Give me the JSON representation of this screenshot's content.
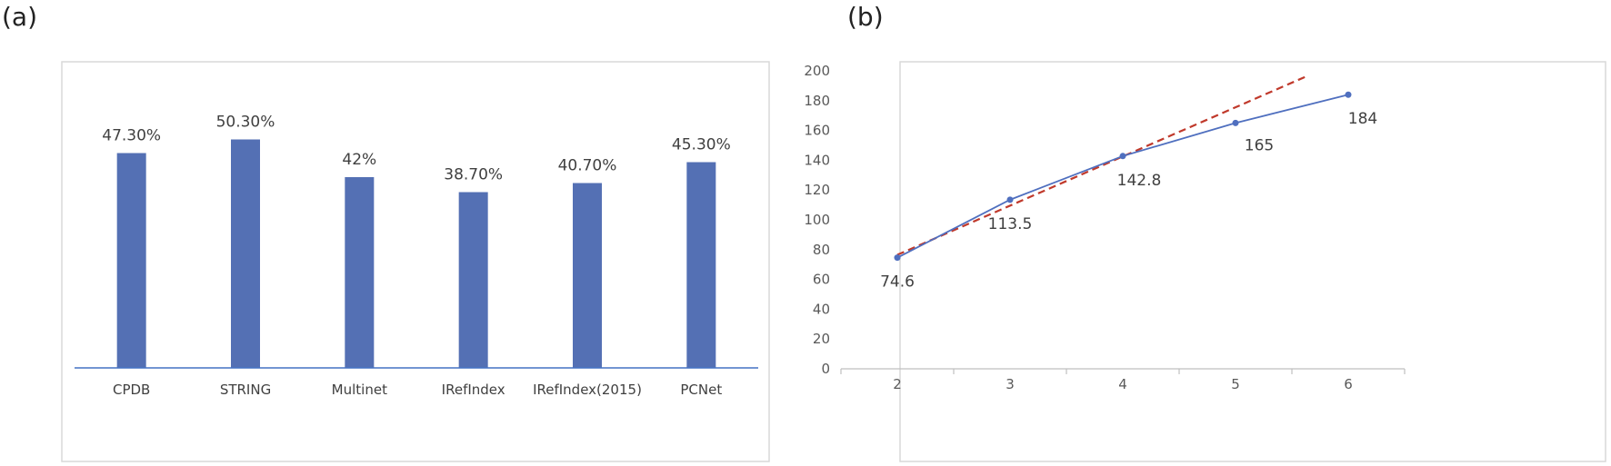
{
  "panels": {
    "a_label": "(a)",
    "b_label": "(b)"
  },
  "chart_data": [
    {
      "type": "bar",
      "categories": [
        "CPDB",
        "STRING",
        "Multinet",
        "IRefIndex",
        "IRefIndex(2015)",
        "PCNet"
      ],
      "values": [
        47.3,
        50.3,
        42,
        38.7,
        40.7,
        45.3
      ],
      "data_labels": [
        "47.30%",
        "50.30%",
        "42%",
        "38.70%",
        "40.70%",
        "45.30%"
      ],
      "title": "",
      "xlabel": "",
      "ylabel": "",
      "ylim": [
        0,
        60
      ],
      "grid": false,
      "colors": {
        "bar": "#5470b4",
        "axis": "#4472c4"
      }
    },
    {
      "type": "line",
      "x": [
        2,
        3,
        4,
        5,
        6
      ],
      "series": [
        {
          "values": [
            74.6,
            113.5,
            142.8,
            165,
            184
          ],
          "style": "solid",
          "color": "#4f6fbf",
          "markers": true
        },
        {
          "x": [
            2,
            5.65
          ],
          "values": [
            76.5,
            197
          ],
          "style": "dashed",
          "color": "#c0392b",
          "markers": false
        }
      ],
      "data_labels": [
        "74.6",
        "113.5",
        "142.8",
        "165",
        "184"
      ],
      "title": "",
      "xlabel": "",
      "ylabel": "",
      "yticks": [
        "0",
        "20",
        "40",
        "60",
        "80",
        "100",
        "120",
        "140",
        "160",
        "180",
        "200"
      ],
      "xticks": [
        "2",
        "3",
        "4",
        "5",
        "6"
      ],
      "ylim": [
        0,
        200
      ],
      "grid": false
    }
  ]
}
